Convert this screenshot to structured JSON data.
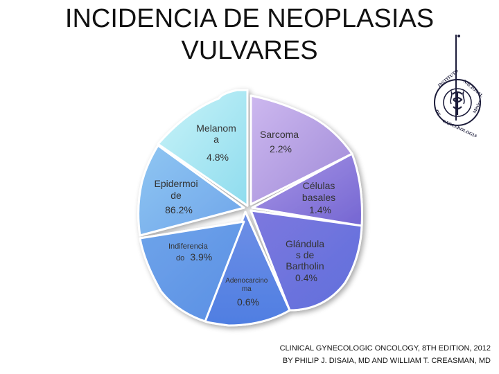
{
  "title_line1": "INCIDENCIA DE NEOPLASIAS",
  "title_line2": "VULVARES",
  "chart_data": {
    "type": "pie",
    "title": "INCIDENCIA DE NEOPLASIAS VULVARES",
    "units": "%",
    "slices": [
      {
        "label": "Melanoma",
        "value": 4.8,
        "color": "#a9e8f2"
      },
      {
        "label": "Sarcoma",
        "value": 2.2,
        "color": "#b39ee3"
      },
      {
        "label": "Células basales",
        "value": 1.4,
        "color": "#8c7fdc"
      },
      {
        "label": "Glándulas de Bartholin",
        "value": 0.4,
        "color": "#6f7fe0"
      },
      {
        "label": "Adenocarcinoma",
        "value": 0.6,
        "color": "#5a8ae6"
      },
      {
        "label": "Indiferenciado",
        "value": 3.9,
        "color": "#6b9ce8"
      },
      {
        "label": "Epidermoide",
        "value": 86.2,
        "color": "#7fb5ee"
      }
    ]
  },
  "labels": {
    "melanoma": [
      "Melanom",
      "a",
      "4.8%"
    ],
    "sarcoma": [
      "Sarcoma",
      "2.2%"
    ],
    "basales": [
      "Células",
      "basales",
      "1.4%"
    ],
    "bartholin": [
      "Glándula",
      "s de",
      "Bartholin",
      "0.4%"
    ],
    "adeno": [
      "Adenocarcino",
      "ma",
      "0.6%"
    ],
    "indif": [
      "Indiferencia",
      "do",
      "3.9%"
    ],
    "epid": [
      "Epidermoi",
      "de",
      "86.2%"
    ]
  },
  "logo_text": "INSTITUTO NACIONAL DE CANCEROLOGIA México",
  "citation_line1": "CLINICAL GYNECOLOGIC ONCOLOGY, 8TH EDITION, 2012",
  "citation_line2": "BY PHILIP J. DISAIA, MD AND WILLIAM T. CREASMAN, MD"
}
